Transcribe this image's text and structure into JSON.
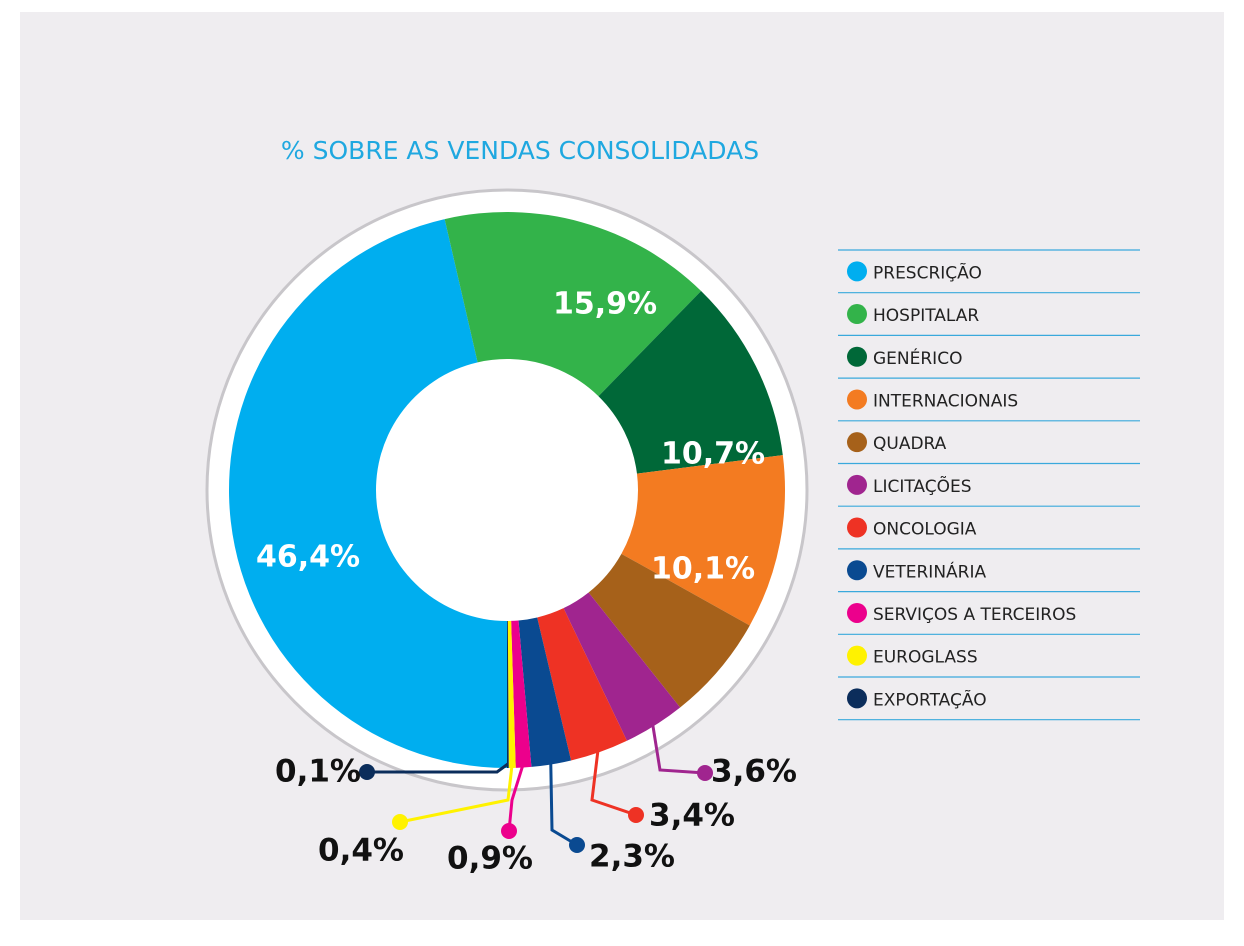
{
  "chart_data": {
    "type": "donut",
    "title": "% SOBRE AS VENDAS CONSOLIDADAS",
    "categories": [
      "PRESCRIÇÃO",
      "HOSPITALAR",
      "GENÉRICO",
      "INTERNACIONAIS",
      "QUADRA",
      "LICITAÇÕES",
      "ONCOLOGIA",
      "VETERINÁRIA",
      "SERVIÇOS A TERCEIROS",
      "EUROGLASS",
      "EXPORTAÇÃO"
    ],
    "values": [
      46.4,
      15.9,
      10.7,
      10.1,
      6.2,
      3.6,
      3.4,
      2.3,
      0.9,
      0.4,
      0.1
    ],
    "value_labels": [
      "46,4%",
      "15,9%",
      "10,7%",
      "10,1%",
      null,
      "3,6%",
      "3,4%",
      "2,3%",
      "0,9%",
      "0,4%",
      "0,1%"
    ],
    "colors": [
      "#00aeef",
      "#33b34a",
      "#006838",
      "#f37b21",
      "#a6611a",
      "#a0258f",
      "#ee3224",
      "#0a4a91",
      "#ec008c",
      "#fff200",
      "#0b2d5b"
    ],
    "legend": "right"
  }
}
